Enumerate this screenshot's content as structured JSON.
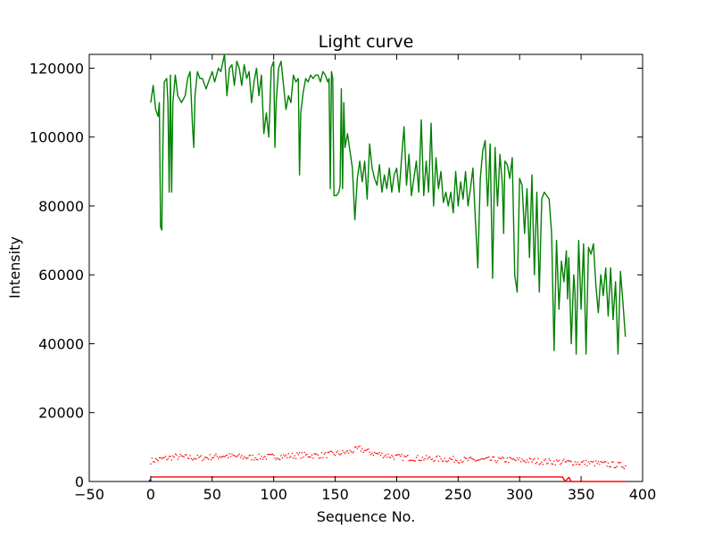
{
  "chart_data": {
    "type": "line",
    "title": "Light curve",
    "xlabel": "Sequence No.",
    "ylabel": "Intensity",
    "xlim": [
      -50,
      400
    ],
    "ylim": [
      0,
      124000
    ],
    "grid": false,
    "x_ticks": [
      -50,
      0,
      50,
      100,
      150,
      200,
      250,
      300,
      350,
      400
    ],
    "x_tick_labels": [
      "−50",
      "0",
      "50",
      "100",
      "150",
      "200",
      "250",
      "300",
      "350",
      "400"
    ],
    "y_ticks": [
      0,
      20000,
      40000,
      60000,
      80000,
      100000,
      120000
    ],
    "y_tick_labels": [
      "0",
      "20000",
      "40000",
      "60000",
      "80000",
      "100000",
      "120000"
    ],
    "series": [
      {
        "name": "green",
        "style": "line",
        "color": "#008000",
        "anchors": [
          [
            0,
            110000
          ],
          [
            2,
            115000
          ],
          [
            4,
            108000
          ],
          [
            6,
            106000
          ],
          [
            7,
            110000
          ],
          [
            8,
            74000
          ],
          [
            9,
            73000
          ],
          [
            10,
            100000
          ],
          [
            11,
            116000
          ],
          [
            13,
            117000
          ],
          [
            14,
            110000
          ],
          [
            15,
            84000
          ],
          [
            16,
            118000
          ],
          [
            17,
            84000
          ],
          [
            18,
            110000
          ],
          [
            20,
            118000
          ],
          [
            22,
            112000
          ],
          [
            25,
            110000
          ],
          [
            28,
            112000
          ],
          [
            30,
            117000
          ],
          [
            32,
            119000
          ],
          [
            34,
            103000
          ],
          [
            35,
            97000
          ],
          [
            36,
            112000
          ],
          [
            38,
            119000
          ],
          [
            40,
            117000
          ],
          [
            42,
            117000
          ],
          [
            45,
            114000
          ],
          [
            48,
            117000
          ],
          [
            50,
            119000
          ],
          [
            52,
            116000
          ],
          [
            55,
            120000
          ],
          [
            57,
            119000
          ],
          [
            60,
            124000
          ],
          [
            62,
            112000
          ],
          [
            64,
            120000
          ],
          [
            66,
            121000
          ],
          [
            68,
            115000
          ],
          [
            70,
            122000
          ],
          [
            72,
            120000
          ],
          [
            74,
            115000
          ],
          [
            76,
            121000
          ],
          [
            78,
            117000
          ],
          [
            80,
            119000
          ],
          [
            82,
            110000
          ],
          [
            84,
            116000
          ],
          [
            86,
            120000
          ],
          [
            88,
            112000
          ],
          [
            90,
            118000
          ],
          [
            92,
            101000
          ],
          [
            94,
            107000
          ],
          [
            96,
            100000
          ],
          [
            98,
            120000
          ],
          [
            100,
            122000
          ],
          [
            101,
            97000
          ],
          [
            102,
            110000
          ],
          [
            104,
            120000
          ],
          [
            106,
            122000
          ],
          [
            108,
            115000
          ],
          [
            110,
            108000
          ],
          [
            112,
            112000
          ],
          [
            114,
            110000
          ],
          [
            116,
            118000
          ],
          [
            118,
            116000
          ],
          [
            120,
            117000
          ],
          [
            121,
            89000
          ],
          [
            122,
            107000
          ],
          [
            124,
            113000
          ],
          [
            126,
            117000
          ],
          [
            128,
            116000
          ],
          [
            130,
            118000
          ],
          [
            132,
            117000
          ],
          [
            134,
            118000
          ],
          [
            136,
            118000
          ],
          [
            138,
            116000
          ],
          [
            140,
            119000
          ],
          [
            142,
            118000
          ],
          [
            144,
            116000
          ],
          [
            145,
            117000
          ],
          [
            146,
            85000
          ],
          [
            147,
            119000
          ],
          [
            148,
            117000
          ],
          [
            149,
            83000
          ],
          [
            151,
            83000
          ],
          [
            153,
            84000
          ],
          [
            154,
            86000
          ],
          [
            155,
            114000
          ],
          [
            156,
            85000
          ],
          [
            157,
            110000
          ],
          [
            158,
            97000
          ],
          [
            160,
            101000
          ],
          [
            162,
            96000
          ],
          [
            164,
            91000
          ],
          [
            166,
            76000
          ],
          [
            168,
            88000
          ],
          [
            170,
            93000
          ],
          [
            172,
            87000
          ],
          [
            174,
            93000
          ],
          [
            176,
            82000
          ],
          [
            178,
            98000
          ],
          [
            180,
            91000
          ],
          [
            182,
            88000
          ],
          [
            184,
            86000
          ],
          [
            186,
            92000
          ],
          [
            188,
            84000
          ],
          [
            190,
            89000
          ],
          [
            192,
            85000
          ],
          [
            194,
            91000
          ],
          [
            196,
            84000
          ],
          [
            198,
            89000
          ],
          [
            200,
            91000
          ],
          [
            202,
            84000
          ],
          [
            204,
            94000
          ],
          [
            206,
            103000
          ],
          [
            208,
            86000
          ],
          [
            210,
            95000
          ],
          [
            212,
            83000
          ],
          [
            214,
            88000
          ],
          [
            216,
            93000
          ],
          [
            218,
            84000
          ],
          [
            220,
            105000
          ],
          [
            222,
            83000
          ],
          [
            224,
            93000
          ],
          [
            226,
            84000
          ],
          [
            228,
            104000
          ],
          [
            230,
            80000
          ],
          [
            232,
            94000
          ],
          [
            234,
            85000
          ],
          [
            236,
            90000
          ],
          [
            238,
            81000
          ],
          [
            240,
            84000
          ],
          [
            242,
            80000
          ],
          [
            244,
            84000
          ],
          [
            246,
            78000
          ],
          [
            248,
            90000
          ],
          [
            250,
            80000
          ],
          [
            252,
            87000
          ],
          [
            254,
            82000
          ],
          [
            256,
            90000
          ],
          [
            258,
            80000
          ],
          [
            260,
            85000
          ],
          [
            262,
            91000
          ],
          [
            264,
            76000
          ],
          [
            266,
            62000
          ],
          [
            268,
            88000
          ],
          [
            270,
            96000
          ],
          [
            272,
            99000
          ],
          [
            274,
            80000
          ],
          [
            276,
            98000
          ],
          [
            278,
            59000
          ],
          [
            280,
            97000
          ],
          [
            282,
            80000
          ],
          [
            284,
            95000
          ],
          [
            286,
            86000
          ],
          [
            287,
            72000
          ],
          [
            288,
            93000
          ],
          [
            290,
            92000
          ],
          [
            292,
            88000
          ],
          [
            294,
            94000
          ],
          [
            296,
            60000
          ],
          [
            298,
            55000
          ],
          [
            300,
            88000
          ],
          [
            302,
            86000
          ],
          [
            304,
            72000
          ],
          [
            306,
            85000
          ],
          [
            308,
            65000
          ],
          [
            310,
            89000
          ],
          [
            312,
            60000
          ],
          [
            314,
            84000
          ],
          [
            316,
            55000
          ],
          [
            318,
            82000
          ],
          [
            320,
            84000
          ],
          [
            322,
            83000
          ],
          [
            324,
            82000
          ],
          [
            326,
            72000
          ],
          [
            328,
            38000
          ],
          [
            330,
            70000
          ],
          [
            332,
            50000
          ],
          [
            334,
            64000
          ],
          [
            336,
            58000
          ],
          [
            338,
            67000
          ],
          [
            339,
            53000
          ],
          [
            340,
            65000
          ],
          [
            342,
            40000
          ],
          [
            344,
            60000
          ],
          [
            345,
            55000
          ],
          [
            346,
            37000
          ],
          [
            348,
            70000
          ],
          [
            350,
            50000
          ],
          [
            352,
            69000
          ],
          [
            354,
            37000
          ],
          [
            356,
            68000
          ],
          [
            358,
            66000
          ],
          [
            360,
            69000
          ],
          [
            362,
            57000
          ],
          [
            364,
            49000
          ],
          [
            366,
            60000
          ],
          [
            368,
            54000
          ],
          [
            370,
            62000
          ],
          [
            372,
            48000
          ],
          [
            374,
            62000
          ],
          [
            376,
            47000
          ],
          [
            378,
            58000
          ],
          [
            380,
            37000
          ],
          [
            382,
            61000
          ],
          [
            384,
            52000
          ],
          [
            386,
            42000
          ]
        ]
      },
      {
        "name": "red dotted",
        "style": "dotted",
        "color": "#ff0000",
        "anchors": [
          [
            0,
            6000
          ],
          [
            20,
            7200
          ],
          [
            40,
            6800
          ],
          [
            60,
            7500
          ],
          [
            80,
            7000
          ],
          [
            100,
            7200
          ],
          [
            120,
            7600
          ],
          [
            140,
            7600
          ],
          [
            160,
            8500
          ],
          [
            170,
            9500
          ],
          [
            180,
            8300
          ],
          [
            200,
            7100
          ],
          [
            220,
            6700
          ],
          [
            240,
            6500
          ],
          [
            260,
            6200
          ],
          [
            280,
            6300
          ],
          [
            300,
            6200
          ],
          [
            320,
            5800
          ],
          [
            340,
            5600
          ],
          [
            360,
            5300
          ],
          [
            386,
            4600
          ]
        ],
        "jitter": 900
      },
      {
        "name": "red baseline",
        "style": "line",
        "color": "#ff0000",
        "points": [
          [
            0,
            1300
          ],
          [
            335,
            1300
          ],
          [
            337,
            0
          ],
          [
            340,
            1200
          ],
          [
            342,
            0
          ],
          [
            386,
            0
          ]
        ]
      },
      {
        "name": "blue marker",
        "style": "line",
        "color": "#0000ff",
        "points": [
          [
            -1,
            0
          ],
          [
            -1,
            400
          ],
          [
            0,
            400
          ],
          [
            0,
            0
          ]
        ]
      }
    ]
  }
}
